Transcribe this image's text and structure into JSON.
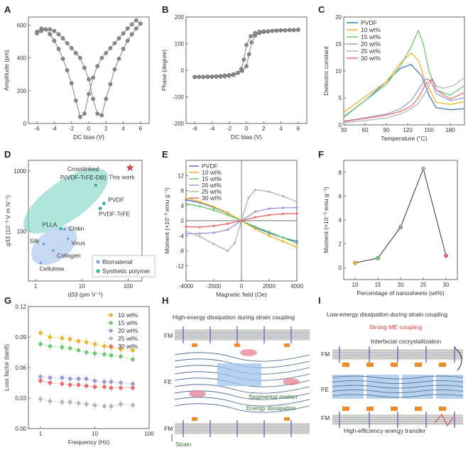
{
  "panels": {
    "A": {
      "label": "A"
    },
    "B": {
      "label": "B"
    },
    "C": {
      "label": "C"
    },
    "D": {
      "label": "D"
    },
    "E": {
      "label": "E"
    },
    "F": {
      "label": "F"
    },
    "G": {
      "label": "G"
    },
    "H": {
      "label": "H"
    },
    "I": {
      "label": "I"
    }
  },
  "chart_data": [
    {
      "panel": "A",
      "type": "line",
      "xlabel": "DC bias (V)",
      "ylabel": "Amplitude (pm)",
      "xlim": [
        -7,
        7
      ],
      "ylim": [
        0,
        650
      ],
      "xticks": [
        -6,
        -4,
        -2,
        0,
        2,
        4,
        6
      ],
      "yticks": [
        0,
        200,
        400,
        600
      ],
      "marker_color": "#8a8a8a",
      "series": [
        {
          "x": [
            -6,
            -5.5,
            -5,
            -4.5,
            -4,
            -3.5,
            -3,
            -2.5,
            -2,
            -1.5,
            -1,
            -0.5,
            0,
            0.5,
            1,
            1.5,
            2,
            2.5,
            3,
            3.5,
            4,
            4.5,
            5,
            5.5,
            6
          ],
          "y": [
            560,
            580,
            575,
            545,
            505,
            455,
            395,
            325,
            245,
            140,
            40,
            60,
            180,
            280,
            350,
            400,
            430,
            460,
            490,
            520,
            550,
            580,
            605,
            630,
            610
          ]
        },
        {
          "x": [
            6,
            5.5,
            5,
            4.5,
            4,
            3.5,
            3,
            2.5,
            2,
            1.5,
            1,
            0.5,
            0,
            -0.5,
            -1,
            -1.5,
            -2,
            -2.5,
            -3,
            -3.5,
            -4,
            -4.5,
            -5,
            -5.5,
            -6
          ],
          "y": [
            610,
            580,
            545,
            505,
            455,
            395,
            330,
            240,
            150,
            50,
            60,
            150,
            270,
            340,
            400,
            430,
            460,
            490,
            520,
            545,
            565,
            575,
            575,
            565,
            550
          ]
        }
      ]
    },
    {
      "panel": "B",
      "type": "line",
      "xlabel": "DC bias (V)",
      "ylabel": "Phase (degree)",
      "xlim": [
        -7,
        7
      ],
      "ylim": [
        -200,
        200
      ],
      "xticks": [
        -6,
        -4,
        -2,
        0,
        2,
        4,
        6
      ],
      "yticks": [
        -200,
        -100,
        0,
        100,
        200
      ],
      "marker_color": "#8a8a8a",
      "series": [
        {
          "x": [
            -6,
            -5.5,
            -5,
            -4.5,
            -4,
            -3.5,
            -3,
            -2.5,
            -2,
            -1.5,
            -1,
            -0.5,
            0,
            0.3,
            0.6,
            1,
            1.5,
            2,
            2.5,
            3,
            3.5,
            4,
            4.5,
            5,
            5.5,
            6
          ],
          "y": [
            -25,
            -25,
            -25,
            -24,
            -24,
            -23,
            -22,
            -20,
            -18,
            -15,
            -10,
            -2,
            15,
            60,
            105,
            130,
            140,
            144,
            146,
            148,
            149,
            150,
            150,
            151,
            151,
            152
          ]
        },
        {
          "x": [
            6,
            5.5,
            5,
            4.5,
            4,
            3.5,
            3,
            2.5,
            2,
            1.5,
            1,
            0.5,
            0,
            -0.3,
            -0.6,
            -1,
            -1.5,
            -2,
            -2.5,
            -3,
            -3.5,
            -4,
            -4.5,
            -5,
            -5.5,
            -6
          ],
          "y": [
            152,
            151,
            151,
            150,
            150,
            149,
            148,
            147,
            146,
            145,
            140,
            128,
            95,
            40,
            5,
            -10,
            -18,
            -21,
            -23,
            -24,
            -24,
            -25,
            -25,
            -25,
            -25,
            -25
          ]
        }
      ]
    },
    {
      "panel": "C",
      "type": "line",
      "xlabel": "Temperature (°C)",
      "ylabel": "Dielectric constant",
      "xlim": [
        30,
        200
      ],
      "ylim": [
        0,
        20
      ],
      "xticks": [
        30,
        60,
        90,
        120,
        150,
        180
      ],
      "yticks": [
        0,
        5,
        10,
        15,
        20
      ],
      "series": [
        {
          "name": "PVDF",
          "color": "#4a78c2",
          "x": [
            30,
            60,
            90,
            110,
            125,
            140,
            150,
            160,
            180,
            200
          ],
          "y": [
            1.5,
            4.5,
            8,
            10.5,
            11.2,
            9,
            5.5,
            3.2,
            2.8,
            3
          ]
        },
        {
          "name": "10 wt%",
          "color": "#f0b429",
          "x": [
            30,
            60,
            90,
            110,
            125,
            135,
            145,
            155,
            160,
            180,
            200
          ],
          "y": [
            2.3,
            5.2,
            8,
            11.5,
            13.3,
            12,
            8,
            5.5,
            4.2,
            3.8,
            4.3
          ]
        },
        {
          "name": "15 wt%",
          "color": "#6cc96c",
          "x": [
            30,
            60,
            90,
            110,
            125,
            135,
            142,
            150,
            160,
            180,
            200
          ],
          "y": [
            1.4,
            4.5,
            7.5,
            11,
            14.5,
            17.5,
            15,
            10,
            6.5,
            5.5,
            7.3
          ]
        },
        {
          "name": "20 wt%",
          "color": "#9a9ad6",
          "x": [
            30,
            60,
            90,
            110,
            125,
            135,
            145,
            152,
            160,
            180,
            200
          ],
          "y": [
            0.7,
            1.3,
            2,
            3,
            4.5,
            6.5,
            8.5,
            8.3,
            5.8,
            4.5,
            5
          ]
        },
        {
          "name": "25 wt%",
          "color": "#b5b5b5",
          "x": [
            30,
            60,
            90,
            110,
            125,
            135,
            145,
            155,
            160,
            170,
            185,
            200
          ],
          "y": [
            0.4,
            0.8,
            1.3,
            2,
            3,
            4,
            6,
            8.5,
            7.2,
            6.8,
            7.3,
            8.8
          ]
        },
        {
          "name": "30 wt%",
          "color": "#ee6b6b",
          "x": [
            30,
            60,
            90,
            110,
            125,
            135,
            145,
            155,
            160,
            180,
            200
          ],
          "y": [
            0.6,
            1.2,
            1.8,
            2.5,
            3.5,
            5,
            7.5,
            8.5,
            6.5,
            4.8,
            6
          ]
        }
      ]
    },
    {
      "panel": "D",
      "type": "scatter",
      "xlabel": "d33 (pm V⁻¹)",
      "ylabel": "g33 (10⁻³ V m N⁻¹)",
      "xscale": "log",
      "yscale": "log",
      "xlim": [
        0.7,
        200
      ],
      "ylim": [
        15,
        1500
      ],
      "xticks": [
        1,
        10,
        100
      ],
      "yticks": [
        100,
        1000
      ],
      "legend": [
        "Biomaterial",
        "Synthetic polymer"
      ],
      "points": [
        {
          "label": "Crosslinked P(VDF-TrFE-DB)",
          "x": 20,
          "y": 580,
          "group": "Synthetic polymer"
        },
        {
          "label": "PVDF",
          "x": 30,
          "y": 290,
          "group": "Synthetic polymer"
        },
        {
          "label": "PVDF-TrFE",
          "x": 25,
          "y": 240,
          "group": "Synthetic polymer"
        },
        {
          "label": "PLLA",
          "x": 3.5,
          "y": 110,
          "group": "Synthetic polymer"
        },
        {
          "label": "Chitin",
          "x": 4.2,
          "y": 108,
          "group": "Biomaterial"
        },
        {
          "label": "Virus",
          "x": 5,
          "y": 75,
          "group": "Biomaterial"
        },
        {
          "label": "Silk",
          "x": 1.5,
          "y": 62,
          "group": "Biomaterial"
        },
        {
          "label": "Collagen",
          "x": 2.4,
          "y": 48,
          "group": "Biomaterial"
        },
        {
          "label": "Cellulose",
          "x": 1.3,
          "y": 30,
          "group": "Biomaterial"
        },
        {
          "label": "This work",
          "x": 110,
          "y": 1130,
          "group": "This work"
        }
      ],
      "annotations": [
        "Crosslinked",
        "P(VDF-TrFE-DB)",
        "This work",
        "PVDF",
        "PVDF-TrFE",
        "PLLA",
        "Chitin",
        "Virus",
        "Silk",
        "Collagen",
        "Cellulose"
      ]
    },
    {
      "panel": "E",
      "type": "line",
      "xlabel": "Magnetic field (Oe)",
      "ylabel": "Moment (×10⁻³ emu g⁻¹)",
      "xlim": [
        -4000,
        4000
      ],
      "ylim": [
        -16,
        16
      ],
      "xticks": [
        -4000,
        -2000,
        0,
        2000,
        4000
      ],
      "yticks": [
        -12,
        -8,
        -4,
        0,
        4,
        8,
        12
      ],
      "series": [
        {
          "name": "PVDF",
          "color": "#4a78c2",
          "x": [
            -4000,
            -3000,
            -2000,
            -1000,
            0,
            1000,
            2000,
            3000,
            4000
          ],
          "y": [
            5.5,
            4.8,
            3.5,
            2,
            0,
            -1.8,
            -3.3,
            -4.5,
            -5.5
          ]
        },
        {
          "name": "10 wt%",
          "color": "#f0b429",
          "x": [
            -4000,
            -3000,
            -2000,
            -1000,
            0,
            1000,
            2000,
            3000,
            4000
          ],
          "y": [
            6,
            5,
            3.7,
            2.1,
            0,
            -2.2,
            -4,
            -5.5,
            -7
          ]
        },
        {
          "name": "15 wt%",
          "color": "#6cc96c",
          "x": [
            -4000,
            -3000,
            -2000,
            -1000,
            0,
            1000,
            2000,
            3000,
            4000
          ],
          "y": [
            4.5,
            3.8,
            2.8,
            1.5,
            0,
            -1.6,
            -3,
            -4.5,
            -6
          ]
        },
        {
          "name": "20 wt%",
          "color": "#9a9ad6",
          "x": [
            -4000,
            -3000,
            -2000,
            -1000,
            0,
            1000,
            2000,
            3000,
            4000
          ],
          "y": [
            -3.5,
            -3.4,
            -3.2,
            -2.4,
            0,
            2.4,
            3.2,
            3.4,
            3.5
          ]
        },
        {
          "name": "25 wt%",
          "color": "#b5b5b5",
          "x": [
            -4000,
            -3000,
            -2000,
            -1000,
            -500,
            0,
            500,
            1000,
            2000,
            3000,
            4000
          ],
          "y": [
            -2.8,
            -4.2,
            -6.2,
            -8,
            -6,
            0,
            6,
            8.2,
            7.7,
            6.5,
            5
          ]
        },
        {
          "name": "30 wt%",
          "color": "#ee6b6b",
          "x": [
            -4000,
            -3000,
            -2000,
            -1000,
            0,
            1000,
            2000,
            3000,
            4000
          ],
          "y": [
            -1.6,
            -1.7,
            -1.4,
            -0.8,
            0,
            0.9,
            1.5,
            1.8,
            1.9
          ]
        }
      ]
    },
    {
      "panel": "F",
      "type": "line",
      "xlabel": "Percentage of nanosheets (wt%)",
      "ylabel": "Moment (×10⁻³ emu g⁻¹)",
      "xlim": [
        7.5,
        32.5
      ],
      "ylim": [
        -1,
        9
      ],
      "xticks": [
        10,
        15,
        20,
        25,
        30
      ],
      "yticks": [
        0,
        2,
        4,
        6,
        8
      ],
      "x": [
        10,
        15,
        20,
        25,
        30
      ],
      "y": [
        0.4,
        0.8,
        3.4,
        8.3,
        1.0
      ],
      "point_colors": [
        "#f0b429",
        "#6cc96c",
        "#9a9ad6",
        "#b5b5b5",
        "#ee6b6b"
      ]
    },
    {
      "panel": "G",
      "type": "scatter",
      "xlabel": "Frequency (Hz)",
      "ylabel": "Loss factor (tanδ)",
      "xscale": "log",
      "xlim": [
        0.6,
        100
      ],
      "ylim": [
        0,
        0.12
      ],
      "xticks": [
        1,
        10,
        100
      ],
      "yticks": [
        0.0,
        0.03,
        0.06,
        0.09,
        0.12
      ],
      "series": [
        {
          "name": "10 wt%",
          "color": "#f0b429",
          "x": [
            1,
            1.5,
            2.5,
            3.5,
            5,
            7,
            10,
            15,
            20,
            30,
            50
          ],
          "y": [
            0.094,
            0.09,
            0.089,
            0.088,
            0.086,
            0.085,
            0.083,
            0.081,
            0.08,
            0.078,
            0.077
          ]
        },
        {
          "name": "15 wt%",
          "color": "#6cc96c",
          "x": [
            1,
            1.5,
            2.5,
            3.5,
            5,
            7,
            10,
            15,
            20,
            30,
            50
          ],
          "y": [
            0.083,
            0.081,
            0.08,
            0.079,
            0.077,
            0.075,
            0.074,
            0.073,
            0.072,
            0.071,
            0.068
          ]
        },
        {
          "name": "20 wt%",
          "color": "#9a9ad6",
          "x": [
            1,
            1.5,
            2.5,
            3.5,
            5,
            7,
            10,
            15,
            20,
            30,
            50
          ],
          "y": [
            0.051,
            0.05,
            0.05,
            0.049,
            0.049,
            0.049,
            0.047,
            0.046,
            0.046,
            0.045,
            0.044
          ]
        },
        {
          "name": "25 wt%",
          "color": "#b5b5b5",
          "x": [
            1,
            1.5,
            2.5,
            3.5,
            5,
            7,
            10,
            15,
            20,
            30,
            50
          ],
          "y": [
            0.029,
            0.027,
            0.026,
            0.026,
            0.025,
            0.024,
            0.023,
            0.022,
            0.022,
            0.024,
            0.023
          ]
        },
        {
          "name": "30 wt%",
          "color": "#ee6b6b",
          "x": [
            1,
            1.5,
            2.5,
            3.5,
            5,
            7,
            10,
            15,
            20,
            30,
            50
          ],
          "y": [
            0.047,
            0.045,
            0.044,
            0.043,
            0.043,
            0.042,
            0.041,
            0.041,
            0.04,
            0.04,
            0.04
          ]
        }
      ]
    }
  ],
  "diagram_H": {
    "title": "High-energy dissipation during strain coupling",
    "fm_top": "FM",
    "fe": "FE",
    "fm_bottom": "FM",
    "segmental_motion": "Segmental motion",
    "energy_dissipation": "Energy dissipation",
    "strain": "Strain"
  },
  "diagram_I": {
    "title": "Low-energy dissipation during strain coupling",
    "subtitle": "Strong ME coupling",
    "subtitle_color": "#e03a3a",
    "fm_top": "FM",
    "fe": "FE",
    "fm_bottom": "FM",
    "interfacial": "Interfacial cocrystallization",
    "energy_transfer": "High-efficiency energy transfer"
  },
  "colors": {
    "teal": "#6fcfbf",
    "blue_ellipse": "#b9cff0",
    "star": "#c0504d",
    "fe_crystal": "#9ec3ea"
  }
}
